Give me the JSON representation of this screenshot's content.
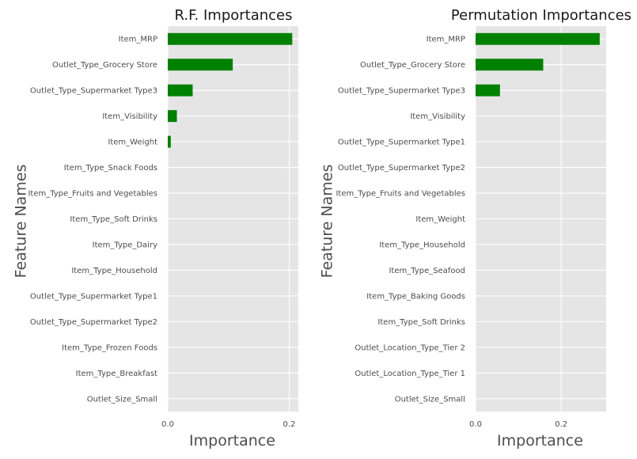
{
  "chart_data": [
    {
      "type": "bar",
      "orientation": "horizontal",
      "title": "R.F. Importances",
      "xlabel": "Importance",
      "ylabel": "Feature Names",
      "xlim": [
        0,
        0.215
      ],
      "xticks": [
        0.0,
        0.2
      ],
      "xtick_labels": [
        "0.0",
        "0.2"
      ],
      "grid": true,
      "bar_color": "#008000",
      "categories": [
        "Item_MRP",
        "Outlet_Type_Grocery Store",
        "Outlet_Type_Supermarket Type3",
        "Item_Visibility",
        "Item_Weight",
        "Item_Type_Snack Foods",
        "Item_Type_Fruits and Vegetables",
        "Item_Type_Soft Drinks",
        "Item_Type_Dairy",
        "Item_Type_Household",
        "Outlet_Type_Supermarket Type1",
        "Outlet_Type_Supermarket Type2",
        "Item_Type_Frozen Foods",
        "Item_Type_Breakfast",
        "Outlet_Size_Small"
      ],
      "values": [
        0.205,
        0.107,
        0.041,
        0.015,
        0.005,
        0.0,
        0.0,
        0.0,
        0.0,
        0.0,
        0.0,
        0.0,
        0.0,
        0.0,
        0.0
      ]
    },
    {
      "type": "bar",
      "orientation": "horizontal",
      "title": "Permutation Importances",
      "xlabel": "Importance",
      "ylabel": "Feature Names",
      "xlim": [
        0,
        0.305
      ],
      "xticks": [
        0.0,
        0.2
      ],
      "xtick_labels": [
        "0.0",
        "0.2"
      ],
      "grid": true,
      "bar_color": "#008000",
      "categories": [
        "Item_MRP",
        "Outlet_Type_Grocery Store",
        "Outlet_Type_Supermarket Type3",
        "Item_Visibility",
        "Outlet_Type_Supermarket Type1",
        "Outlet_Type_Supermarket Type2",
        "Item_Type_Fruits and Vegetables",
        "Item_Weight",
        "Item_Type_Household",
        "Item_Type_Seafood",
        "Item_Type_Baking Goods",
        "Item_Type_Soft Drinks",
        "Outlet_Location_Type_Tier 2",
        "Outlet_Location_Type_Tier 1",
        "Outlet_Size_Small"
      ],
      "values": [
        0.29,
        0.158,
        0.057,
        0.0,
        0.0,
        0.0,
        0.0,
        0.0,
        0.0,
        0.0,
        0.0,
        0.0,
        0.0,
        0.0,
        0.0
      ]
    }
  ]
}
